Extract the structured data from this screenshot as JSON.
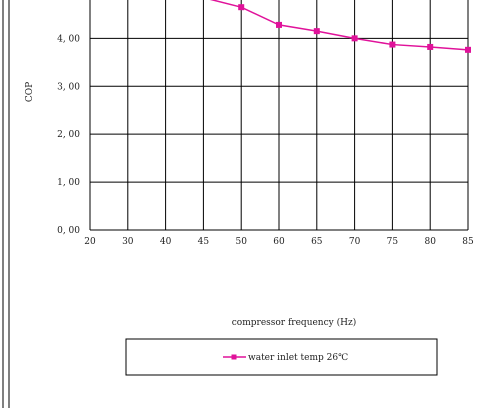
{
  "chart_data": {
    "type": "line",
    "title": "",
    "xlabel": "compressor frequency (Hz)",
    "ylabel": "COP",
    "x_ticks": [
      "20",
      "30",
      "40",
      "45",
      "50",
      "60",
      "65",
      "70",
      "75",
      "80",
      "85"
    ],
    "y_ticks": [
      "0, 00",
      "1, 00",
      "2, 00",
      "3, 00",
      "4, 00"
    ],
    "y_tick_values": [
      0,
      1,
      2,
      3,
      4
    ],
    "ylim": [
      0,
      4.8
    ],
    "grid": true,
    "legend_position": "bottom-center",
    "series": [
      {
        "name": "water inlet temp 26℃",
        "color": "#e0129a",
        "points": [
          {
            "x": "45",
            "y": 4.85,
            "marker": false
          },
          {
            "x": "50",
            "y": 4.65,
            "marker": true
          },
          {
            "x": "60",
            "y": 4.28,
            "marker": true
          },
          {
            "x": "65",
            "y": 4.15,
            "marker": true
          },
          {
            "x": "70",
            "y": 4.0,
            "marker": true
          },
          {
            "x": "75",
            "y": 3.87,
            "marker": true
          },
          {
            "x": "80",
            "y": 3.82,
            "marker": true
          },
          {
            "x": "85",
            "y": 3.76,
            "marker": true
          }
        ]
      }
    ]
  }
}
